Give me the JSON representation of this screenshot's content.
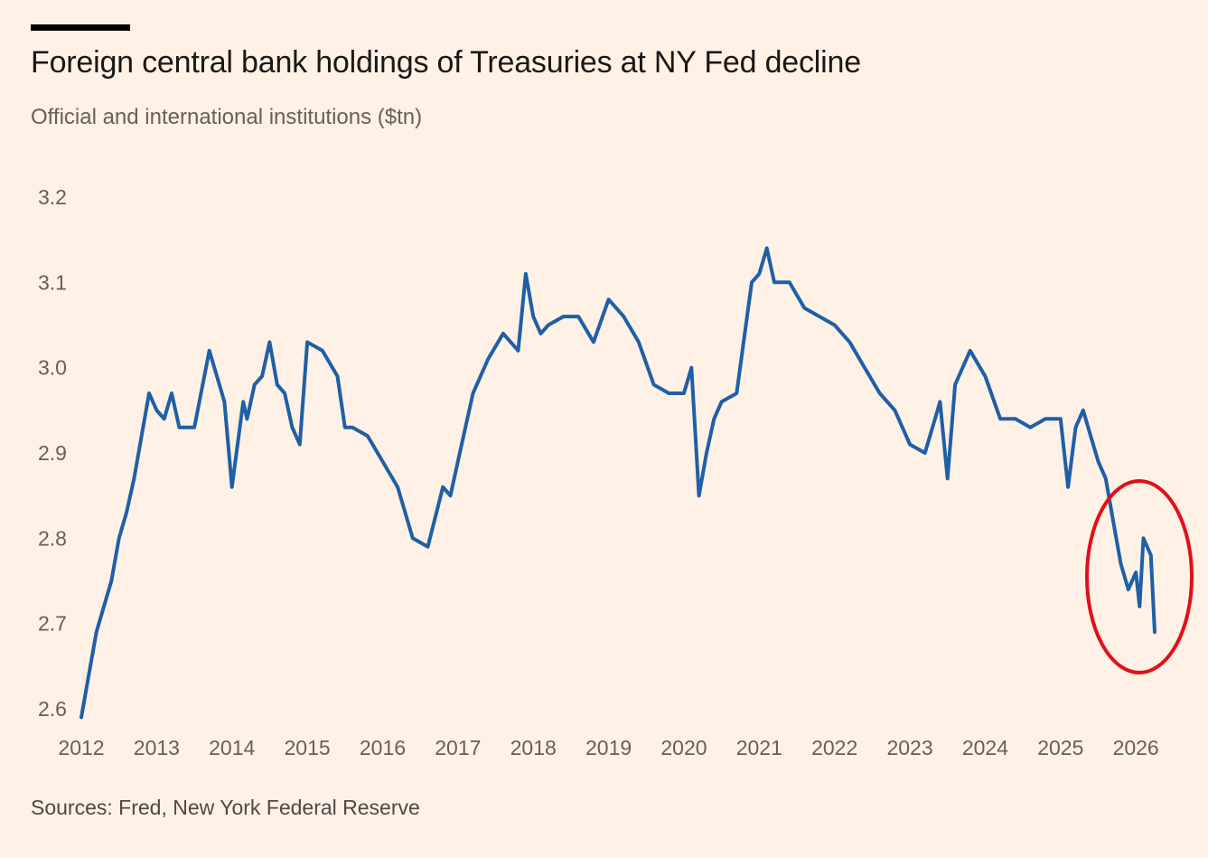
{
  "header": {
    "title": "Foreign central bank holdings of Treasuries at NY Fed decline",
    "subtitle": "Official and international institutions ($tn)"
  },
  "footer": {
    "source": "Sources: Fred, New York Federal Reserve"
  },
  "colors": {
    "background": "#FFF1E5",
    "line": "#1F5FA6",
    "annotation": "#E0101A",
    "text_muted": "#66605c"
  },
  "chart_data": {
    "type": "line",
    "title": "Foreign central bank holdings of Treasuries at NY Fed decline",
    "subtitle": "Official and international institutions ($tn)",
    "xlabel": "",
    "ylabel": "",
    "ylim": [
      2.6,
      3.2
    ],
    "xlim": [
      2012.0,
      2026.3
    ],
    "grid": false,
    "y_ticks": [
      "2.6",
      "2.7",
      "2.8",
      "2.9",
      "3.0",
      "3.1",
      "3.2"
    ],
    "x_ticks": [
      "2012",
      "2013",
      "2014",
      "2015",
      "2016",
      "2017",
      "2018",
      "2019",
      "2020",
      "2021",
      "2022",
      "2023",
      "2024",
      "2025",
      "2026"
    ],
    "annotation": "red ellipse circling the late-2025 to 2026 decline",
    "series": [
      {
        "name": "",
        "x": [
          2012.0,
          2012.1,
          2012.2,
          2012.3,
          2012.4,
          2012.5,
          2012.6,
          2012.7,
          2012.8,
          2012.9,
          2013.0,
          2013.1,
          2013.2,
          2013.3,
          2013.5,
          2013.7,
          2013.9,
          2014.0,
          2014.15,
          2014.2,
          2014.3,
          2014.4,
          2014.5,
          2014.6,
          2014.7,
          2014.8,
          2014.9,
          2015.0,
          2015.2,
          2015.4,
          2015.5,
          2015.6,
          2015.8,
          2016.0,
          2016.2,
          2016.4,
          2016.6,
          2016.8,
          2016.9,
          2017.0,
          2017.2,
          2017.4,
          2017.6,
          2017.8,
          2017.9,
          2018.0,
          2018.1,
          2018.2,
          2018.4,
          2018.6,
          2018.8,
          2019.0,
          2019.2,
          2019.4,
          2019.6,
          2019.8,
          2020.0,
          2020.1,
          2020.2,
          2020.3,
          2020.4,
          2020.5,
          2020.7,
          2020.9,
          2021.0,
          2021.1,
          2021.2,
          2021.4,
          2021.6,
          2021.8,
          2022.0,
          2022.2,
          2022.4,
          2022.6,
          2022.8,
          2023.0,
          2023.2,
          2023.3,
          2023.4,
          2023.5,
          2023.6,
          2023.8,
          2024.0,
          2024.2,
          2024.4,
          2024.6,
          2024.8,
          2025.0,
          2025.1,
          2025.2,
          2025.3,
          2025.4,
          2025.5,
          2025.6,
          2025.7,
          2025.8,
          2025.9,
          2026.0,
          2026.05,
          2026.1,
          2026.2,
          2026.25
        ],
        "values": [
          2.59,
          2.64,
          2.69,
          2.72,
          2.75,
          2.8,
          2.83,
          2.87,
          2.92,
          2.97,
          2.95,
          2.94,
          2.97,
          2.93,
          2.93,
          3.02,
          2.96,
          2.86,
          2.96,
          2.94,
          2.98,
          2.99,
          3.03,
          2.98,
          2.97,
          2.93,
          2.91,
          3.03,
          3.02,
          2.99,
          2.93,
          2.93,
          2.92,
          2.89,
          2.86,
          2.8,
          2.79,
          2.86,
          2.85,
          2.89,
          2.97,
          3.01,
          3.04,
          3.02,
          3.11,
          3.06,
          3.04,
          3.05,
          3.06,
          3.06,
          3.03,
          3.08,
          3.06,
          3.03,
          2.98,
          2.97,
          2.97,
          3.0,
          2.85,
          2.9,
          2.94,
          2.96,
          2.97,
          3.1,
          3.11,
          3.14,
          3.1,
          3.1,
          3.07,
          3.06,
          3.05,
          3.03,
          3.0,
          2.97,
          2.95,
          2.91,
          2.9,
          2.93,
          2.96,
          2.87,
          2.98,
          3.02,
          2.99,
          2.94,
          2.94,
          2.93,
          2.94,
          2.94,
          2.86,
          2.93,
          2.95,
          2.92,
          2.89,
          2.87,
          2.82,
          2.77,
          2.74,
          2.76,
          2.72,
          2.8,
          2.78,
          2.69
        ]
      }
    ]
  }
}
